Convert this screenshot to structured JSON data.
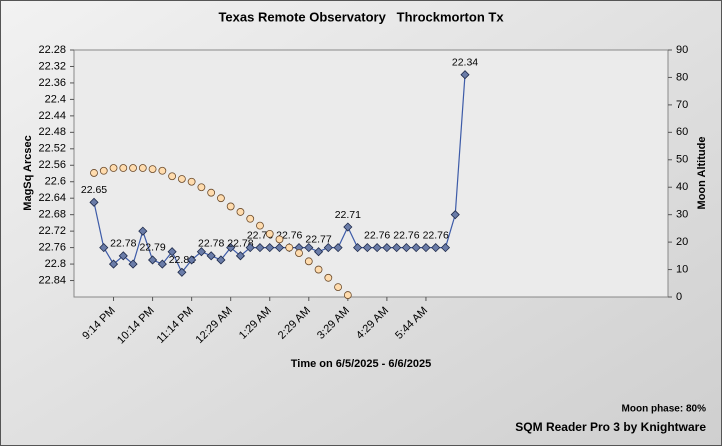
{
  "chart_data": {
    "type": "line",
    "title": "Texas Remote Observatory   Throckmorton Tx",
    "xlabel": "Time on 6/5/2025 - 6/6/2025",
    "ylabel": "MagSq Arcsec",
    "y2label": "Moon Altitude",
    "annotations": [
      "Moon phase: 80%",
      "SQM Reader Pro 3 by Knightware"
    ],
    "categories": [
      null,
      null,
      "9:14 PM",
      null,
      null,
      null,
      "10:14 PM",
      null,
      null,
      null,
      "11:14 PM",
      null,
      null,
      null,
      "12:29 AM",
      null,
      null,
      null,
      "1:29 AM",
      null,
      null,
      null,
      "2:29 AM",
      null,
      null,
      null,
      "3:29 AM",
      null,
      null,
      null,
      "4:29 AM",
      null,
      null,
      null,
      "5:44 AM",
      null,
      null,
      null,
      null
    ],
    "ylim": [
      22.28,
      22.88
    ],
    "y_inverted": true,
    "yticks": [
      22.28,
      22.32,
      22.36,
      22.4,
      22.44,
      22.48,
      22.52,
      22.56,
      22.6,
      22.64,
      22.68,
      22.72,
      22.76,
      22.8,
      22.84
    ],
    "y2lim": [
      0,
      90
    ],
    "y2ticks": [
      0,
      10,
      20,
      30,
      40,
      50,
      60,
      70,
      80,
      90
    ],
    "grid": false,
    "series": [
      {
        "color": "#3d5ba8",
        "marker": "diamond",
        "marker_color": "#6a7ca8",
        "values": [
          22.65,
          22.76,
          22.8,
          22.78,
          22.8,
          22.72,
          22.79,
          22.8,
          22.77,
          22.82,
          22.79,
          22.77,
          22.78,
          22.79,
          22.76,
          22.78,
          22.76,
          22.76,
          22.76,
          22.76,
          22.76,
          22.76,
          22.76,
          22.77,
          22.76,
          22.76,
          22.71,
          22.76,
          22.76,
          22.76,
          22.76,
          22.76,
          22.76,
          22.76,
          22.76,
          22.76,
          22.76,
          22.68,
          22.34
        ],
        "value_labels": [
          "22.65",
          null,
          null,
          "22.78",
          null,
          null,
          "22.79",
          null,
          null,
          "22.82",
          null,
          null,
          "22.78",
          null,
          null,
          "22.78",
          null,
          "22.76",
          null,
          null,
          "22.76",
          null,
          null,
          "22.77",
          null,
          null,
          "22.71",
          null,
          null,
          "22.76",
          null,
          null,
          "22.76",
          null,
          null,
          "22.76",
          null,
          null,
          "22.34"
        ]
      },
      {
        "color": "#ffdcae",
        "marker": "circle",
        "marker_color": "#ffdcae",
        "axis": "y2",
        "line": false,
        "values": [
          45.2,
          46,
          47,
          47,
          47,
          47,
          46.6,
          46,
          44,
          43,
          42,
          40,
          38,
          36,
          33,
          31,
          28.5,
          26,
          23,
          21,
          18,
          16,
          13,
          10,
          7,
          3.6,
          0.7,
          null,
          null,
          null,
          null,
          null,
          null,
          null,
          null,
          null,
          null,
          null,
          null
        ]
      }
    ]
  }
}
